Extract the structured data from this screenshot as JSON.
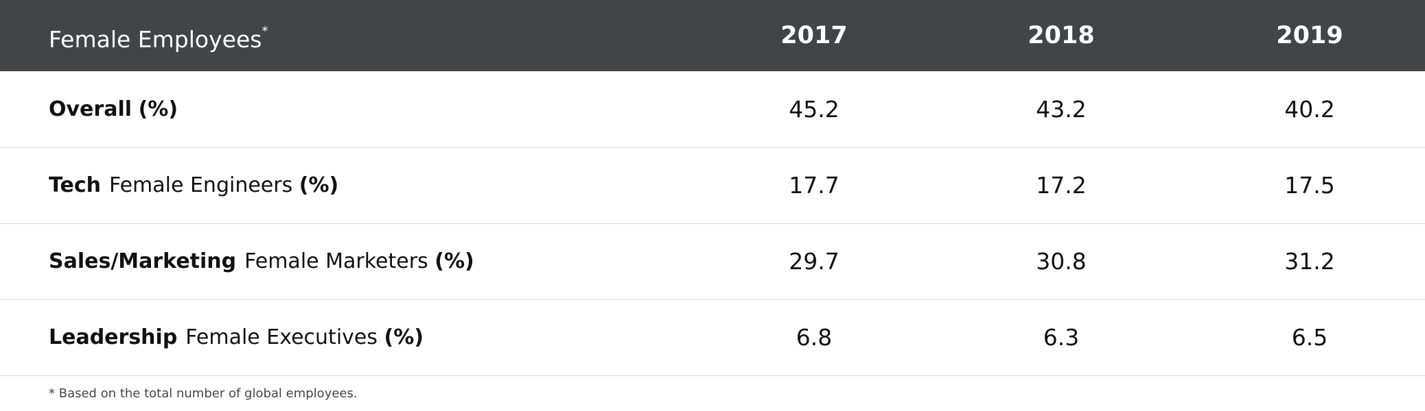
{
  "header": {
    "title": "Female Employees",
    "marker": "*",
    "columns": [
      "2017",
      "2018",
      "2019"
    ]
  },
  "rows": [
    {
      "category": "Overall",
      "unit": "(%)",
      "values": [
        45.2,
        43.2,
        40.2
      ]
    },
    {
      "category": "Tech",
      "label": "Female Engineers",
      "unit": "(%)",
      "values": [
        17.7,
        17.2,
        17.5
      ]
    },
    {
      "category": "Sales/Marketing",
      "label": "Female Marketers",
      "unit": "(%)",
      "values": [
        29.7,
        30.8,
        31.2
      ]
    },
    {
      "category": "Leadership",
      "label": "Female Executives",
      "unit": "(%)",
      "values": [
        6.8,
        6.3,
        6.5
      ]
    }
  ],
  "footnote": "* Based on the total number of global employees."
}
